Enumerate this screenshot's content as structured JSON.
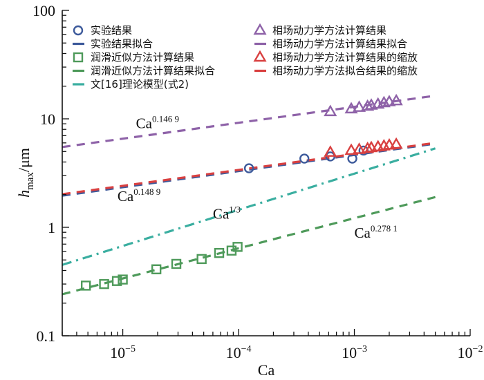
{
  "chart_data": {
    "type": "scatter",
    "title": "",
    "xlabel": "Ca",
    "ylabel": "h_max/μm",
    "ylabel_main": "h",
    "ylabel_sub": "max",
    "ylabel_unit": "/μm",
    "xscale": "log",
    "yscale": "log",
    "xlim": [
      3e-06,
      0.01
    ],
    "ylim": [
      0.1,
      100
    ],
    "grid": false,
    "x_ticks": [
      {
        "value": 1e-05,
        "base": "10",
        "exp": "−5"
      },
      {
        "value": 0.0001,
        "base": "10",
        "exp": "−4"
      },
      {
        "value": 0.001,
        "base": "10",
        "exp": "−3"
      },
      {
        "value": 0.01,
        "base": "10",
        "exp": "−2"
      }
    ],
    "y_ticks": [
      {
        "value": 0.1,
        "label": "0.1"
      },
      {
        "value": 1,
        "label": "1"
      },
      {
        "value": 10,
        "label": "10"
      },
      {
        "value": 100,
        "label": "100"
      }
    ],
    "legend_placement": "top",
    "series": [
      {
        "name": "实验结果",
        "kind": "marker",
        "marker": "circle",
        "color": "#3d5a9b",
        "x": [
          0.000123,
          0.00037,
          0.00062,
          0.00096,
          0.0012
        ],
        "y": [
          3.5,
          4.3,
          4.5,
          4.3,
          5.1
        ]
      },
      {
        "name": "实验结果拟合",
        "kind": "line",
        "dash": "dash",
        "color": "#3d5a9b",
        "exponent": 0.1489,
        "x_range": [
          3e-06,
          0.005
        ],
        "coef_at_1e-4": 3.3
      },
      {
        "name": "润滑近似方法计算结果",
        "kind": "marker",
        "marker": "square",
        "color": "#4e9a5a",
        "x": [
          4.8e-06,
          6.9e-06,
          8.9e-06,
          1e-05,
          1.95e-05,
          2.9e-05,
          4.8e-05,
          6.8e-05,
          8.7e-05,
          9.8e-05
        ],
        "y": [
          0.29,
          0.3,
          0.32,
          0.33,
          0.41,
          0.46,
          0.51,
          0.58,
          0.61,
          0.66
        ]
      },
      {
        "name": "润滑近似方法计算结果拟合",
        "kind": "line",
        "dash": "dash",
        "color": "#4e9a5a",
        "exponent": 0.2781,
        "x_range": [
          3e-06,
          0.005
        ],
        "coef_at_1e-4": 0.64
      },
      {
        "name": "文[16]理论模型(式2)",
        "kind": "line",
        "dash": "dashdot",
        "color": "#3aaea0",
        "exponent": 0.3333,
        "x_range": [
          3e-06,
          0.005
        ],
        "coef_at_1e-4": 1.45
      },
      {
        "name": "相场动力学方法计算结果",
        "kind": "marker",
        "marker": "triangle",
        "color": "#8e62a8",
        "x": [
          0.00062,
          0.00094,
          0.0011,
          0.0013,
          0.0014,
          0.0016,
          0.0018,
          0.002,
          0.0023
        ],
        "y": [
          11.6,
          12.3,
          12.7,
          13.0,
          13.3,
          13.6,
          14.0,
          14.3,
          14.6
        ]
      },
      {
        "name": "相场动力学方法计算结果拟合",
        "kind": "line",
        "dash": "dash",
        "color": "#8e62a8",
        "exponent": 0.1469,
        "x_range": [
          3e-06,
          0.005
        ],
        "coef_at_1e-4": 9.2
      },
      {
        "name": "相场动力学方法计算结果的缩放",
        "kind": "marker",
        "marker": "triangle",
        "color": "#d94040",
        "x": [
          0.00062,
          0.00094,
          0.0011,
          0.0013,
          0.0014,
          0.0016,
          0.0018,
          0.002,
          0.0023
        ],
        "y": [
          4.9,
          5.1,
          5.2,
          5.3,
          5.4,
          5.5,
          5.6,
          5.7,
          5.8
        ]
      },
      {
        "name": "相场动力学方法拟合结果的缩放",
        "kind": "line",
        "dash": "dash",
        "color": "#d94040",
        "exponent": 0.1469,
        "x_range": [
          3e-06,
          0.005
        ],
        "coef_at_1e-4": 3.38
      }
    ],
    "annotations": [
      {
        "base": "Ca",
        "exp": "0.146 9",
        "near_series": "相场动力学方法计算结果拟合",
        "x": 1.3e-05,
        "y": 8.2
      },
      {
        "base": "Ca",
        "exp": "0.148 9",
        "near_series": "实验结果拟合",
        "x": 9e-06,
        "y": 1.75
      },
      {
        "base": "Ca",
        "exp": "1/3",
        "near_series": "文[16]理论模型(式2)",
        "x": 6e-05,
        "y": 1.2
      },
      {
        "base": "Ca",
        "exp": "0.278 1",
        "near_series": "润滑近似方法计算结果拟合",
        "x": 0.001,
        "y": 0.8
      }
    ]
  }
}
